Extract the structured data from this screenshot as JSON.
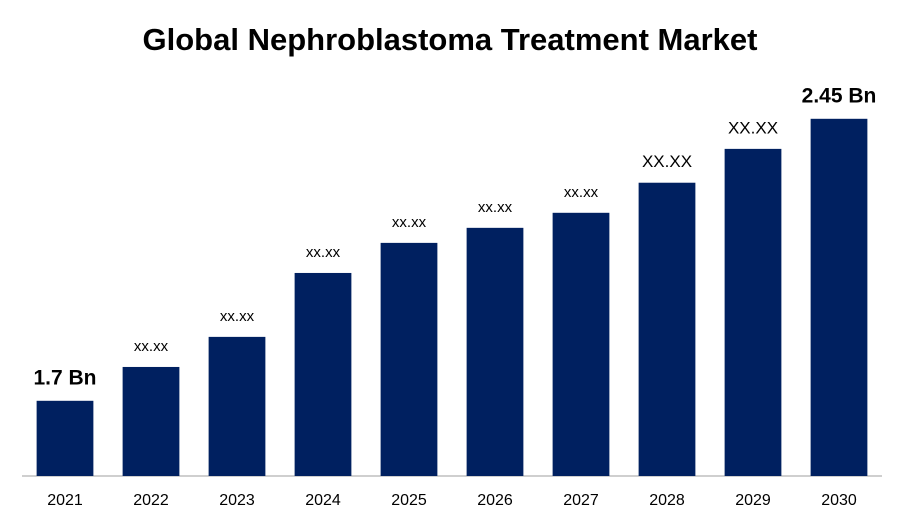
{
  "chart_data": {
    "type": "bar",
    "title": "Global Nephroblastoma Treatment Market",
    "categories": [
      "2021",
      "2022",
      "2023",
      "2024",
      "2025",
      "2026",
      "2027",
      "2028",
      "2029",
      "2030"
    ],
    "values": [
      1.7,
      1.79,
      1.87,
      2.04,
      2.12,
      2.16,
      2.2,
      2.28,
      2.37,
      2.45
    ],
    "value_labels": [
      "1.7 Bn",
      "xx.xx",
      "xx.xx",
      "xx.xx",
      "xx.xx",
      "xx.xx",
      "xx.xx",
      "XX.XX",
      "XX.XX",
      "2.45 Bn"
    ],
    "color": "#002060",
    "ylim": [
      1.5,
      2.5
    ]
  }
}
